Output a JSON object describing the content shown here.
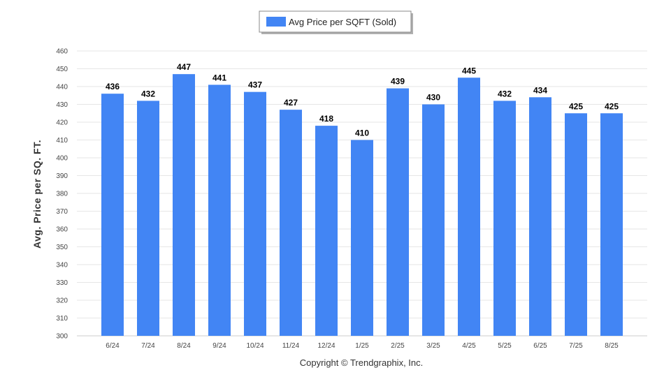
{
  "chart_data": {
    "type": "bar",
    "categories": [
      "6/24",
      "7/24",
      "8/24",
      "9/24",
      "10/24",
      "11/24",
      "12/24",
      "1/25",
      "2/25",
      "3/25",
      "4/25",
      "5/25",
      "6/25",
      "7/25",
      "8/25"
    ],
    "series": [
      {
        "name": "Avg Price per SQFT (Sold)",
        "values": [
          436,
          432,
          447,
          441,
          437,
          427,
          418,
          410,
          439,
          430,
          445,
          432,
          434,
          425,
          425
        ]
      }
    ],
    "ylabel": "Avg. Price per SQ. FT.",
    "xlabel": "",
    "ylim": [
      300,
      460
    ],
    "yticks": [
      300,
      310,
      320,
      330,
      340,
      350,
      360,
      370,
      380,
      390,
      400,
      410,
      420,
      430,
      440,
      450,
      460
    ],
    "grid": true,
    "legend_position": "top-center",
    "bar_color": "#4285f4"
  },
  "footer": {
    "copyright": "Copyright © Trendgraphix, Inc."
  }
}
